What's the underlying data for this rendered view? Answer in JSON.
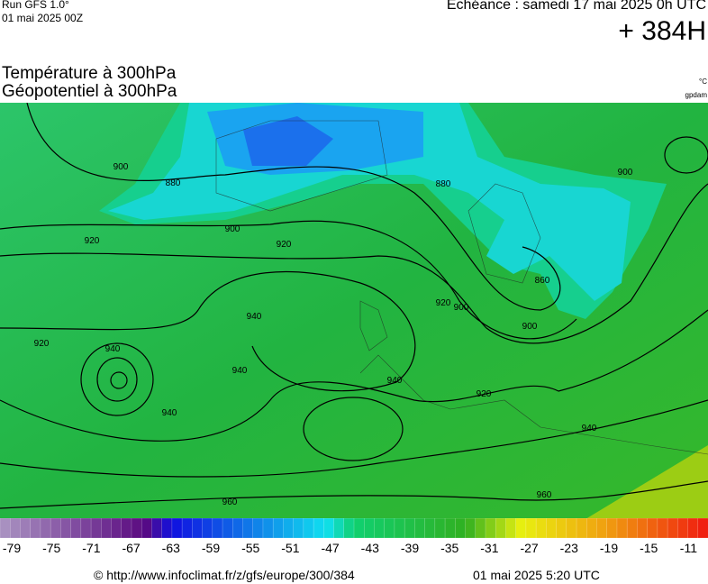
{
  "header": {
    "run": "Run GFS 1.0°",
    "date": "01 mai 2025 00Z",
    "valid": "Echéance : samedi 17 mai 2025 0h UTC",
    "lead": "+ 384H",
    "title_temp": "Température à 300hPa",
    "title_geo": "Géopotentiel à 300hPa",
    "unit_temp": "°C",
    "unit_geo": "gpdam"
  },
  "map": {
    "contour_labels": [
      "900",
      "880",
      "900",
      "920",
      "920",
      "880",
      "900",
      "860",
      "920",
      "900",
      "940",
      "920",
      "940",
      "940",
      "940",
      "920",
      "940",
      "960",
      "960",
      "940",
      "900"
    ]
  },
  "colorbar": {
    "labels": [
      "-79",
      "-75",
      "-71",
      "-67",
      "-63",
      "-59",
      "-55",
      "-51",
      "-47",
      "-43",
      "-39",
      "-35",
      "-31",
      "-27",
      "-23",
      "-19",
      "-15",
      "-11"
    ]
  },
  "footer": {
    "source": "© http://www.infoclimat.fr/z/gfs/europe/300/384",
    "generated": "01 mai 2025  5:20 UTC"
  }
}
